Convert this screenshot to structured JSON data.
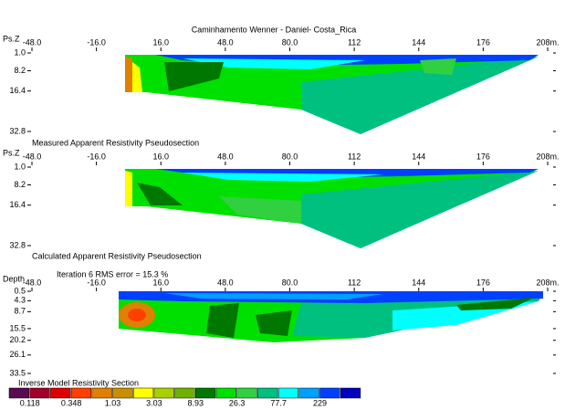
{
  "chart_data": [
    {
      "type": "contour",
      "title": "Caminhamento Wenner - Daniel- Costa_Rica",
      "y_label": "Ps.Z",
      "caption": "Measured Apparent Resistivity Pseudosection",
      "xlim": [
        -48,
        208
      ],
      "xticks": [
        {
          "value": -48,
          "label": "-48.0"
        },
        {
          "value": -16,
          "label": "-16.0"
        },
        {
          "value": 16,
          "label": "16.0"
        },
        {
          "value": 48,
          "label": "48.0"
        },
        {
          "value": 80,
          "label": "80.0"
        },
        112,
        144,
        176,
        {
          "value": 208,
          "label": "208m."
        }
      ],
      "ylim": [
        1.0,
        32.8
      ],
      "yticks": [
        {
          "value": 1,
          "label": "1.0"
        },
        8.2,
        16.4,
        32.8
      ]
    },
    {
      "type": "contour",
      "y_label": "Ps.Z",
      "caption": "Calculated Apparent Resistivity Pseudosection",
      "xlim": [
        -48,
        208
      ],
      "xticks": [
        {
          "value": -48,
          "label": "-48.0"
        },
        {
          "value": -16,
          "label": "-16.0"
        },
        {
          "value": 16,
          "label": "16.0"
        },
        {
          "value": 48,
          "label": "48.0"
        },
        {
          "value": 80,
          "label": "80.0"
        },
        112,
        144,
        176,
        {
          "value": 208,
          "label": "208m."
        }
      ],
      "ylim": [
        1.0,
        32.8
      ],
      "yticks": [
        {
          "value": 1,
          "label": "1.0"
        },
        8.2,
        16.4,
        32.8
      ]
    },
    {
      "type": "contour",
      "y_label": "Depth",
      "note": "Iteration 6 RMS error = 15.3 %",
      "caption": "Inverse Model Resistivity Section",
      "xlim": [
        -48,
        208
      ],
      "xticks": [
        {
          "value": -48,
          "label": "-48.0"
        },
        {
          "value": -16,
          "label": "-16.0"
        },
        {
          "value": 16,
          "label": "16.0"
        },
        {
          "value": 48,
          "label": "48.0"
        },
        {
          "value": 80,
          "label": "80.0"
        },
        112,
        144,
        176,
        {
          "value": 208,
          "label": "208m."
        }
      ],
      "ylim": [
        0.5,
        33.5
      ],
      "yticks": [
        0.5,
        4.3,
        8.7,
        15.5,
        20.2,
        26.1,
        33.5
      ]
    }
  ],
  "legend": {
    "colors": [
      "#5a0a50",
      "#a0002a",
      "#e00000",
      "#ff4000",
      "#e08000",
      "#c89000",
      "#ffff00",
      "#a8d000",
      "#70b000",
      "#007800",
      "#00e000",
      "#30d040",
      "#00c080",
      "#00ffff",
      "#00a0ff",
      "#0040ff",
      "#0000c0"
    ],
    "labels": [
      0.118,
      0.348,
      1.03,
      3.03,
      8.93,
      26.3,
      77.7,
      229
    ]
  }
}
